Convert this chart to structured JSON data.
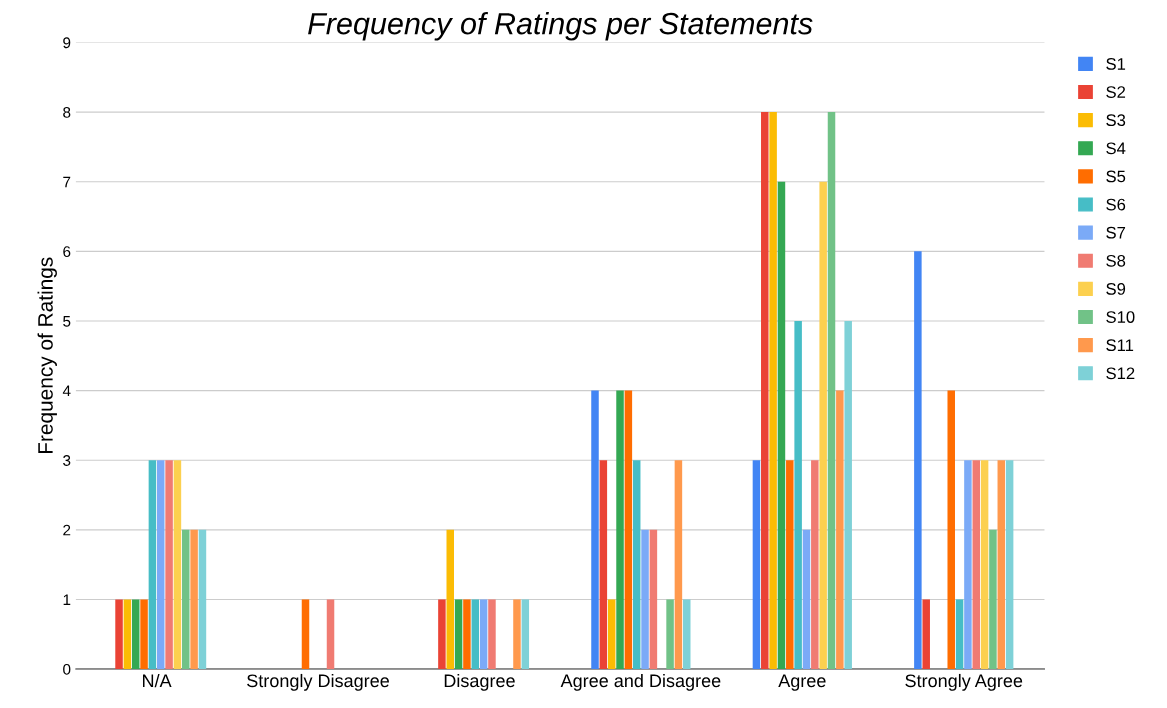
{
  "chart_data": {
    "type": "bar",
    "title": "Frequency of Ratings per Statements",
    "ylabel": "Frequency of Ratings",
    "categories": [
      "N/A",
      "Strongly Disagree",
      "Disagree",
      "Agree and Disagree",
      "Agree",
      "Strongly Agree"
    ],
    "series": [
      {
        "name": "S1",
        "color": "#4285f4",
        "values": [
          0,
          0,
          0,
          4,
          3,
          6
        ]
      },
      {
        "name": "S2",
        "color": "#ea4335",
        "values": [
          1,
          0,
          1,
          3,
          8,
          1
        ]
      },
      {
        "name": "S3",
        "color": "#fbbc04",
        "values": [
          1,
          0,
          2,
          1,
          8,
          0
        ]
      },
      {
        "name": "S4",
        "color": "#34a853",
        "values": [
          1,
          0,
          1,
          4,
          7,
          0
        ]
      },
      {
        "name": "S5",
        "color": "#ff6d01",
        "values": [
          1,
          1,
          1,
          4,
          3,
          4
        ]
      },
      {
        "name": "S6",
        "color": "#46bdc6",
        "values": [
          3,
          0,
          1,
          3,
          5,
          1
        ]
      },
      {
        "name": "S7",
        "color": "#7baaf7",
        "values": [
          3,
          0,
          1,
          2,
          2,
          3
        ]
      },
      {
        "name": "S8",
        "color": "#f07b72",
        "values": [
          3,
          1,
          1,
          2,
          3,
          3
        ]
      },
      {
        "name": "S9",
        "color": "#fcd04f",
        "values": [
          3,
          0,
          0,
          0,
          7,
          3
        ]
      },
      {
        "name": "S10",
        "color": "#71c287",
        "values": [
          2,
          0,
          0,
          1,
          8,
          2
        ]
      },
      {
        "name": "S11",
        "color": "#ff994d",
        "values": [
          2,
          0,
          1,
          3,
          4,
          3
        ]
      },
      {
        "name": "S12",
        "color": "#7ed1d7",
        "values": [
          2,
          0,
          1,
          1,
          5,
          3
        ]
      }
    ],
    "ylim": [
      0,
      9
    ],
    "yticks": [
      0,
      1,
      2,
      3,
      4,
      5,
      6,
      7,
      8,
      9
    ],
    "grid": "y",
    "legend": "right"
  }
}
